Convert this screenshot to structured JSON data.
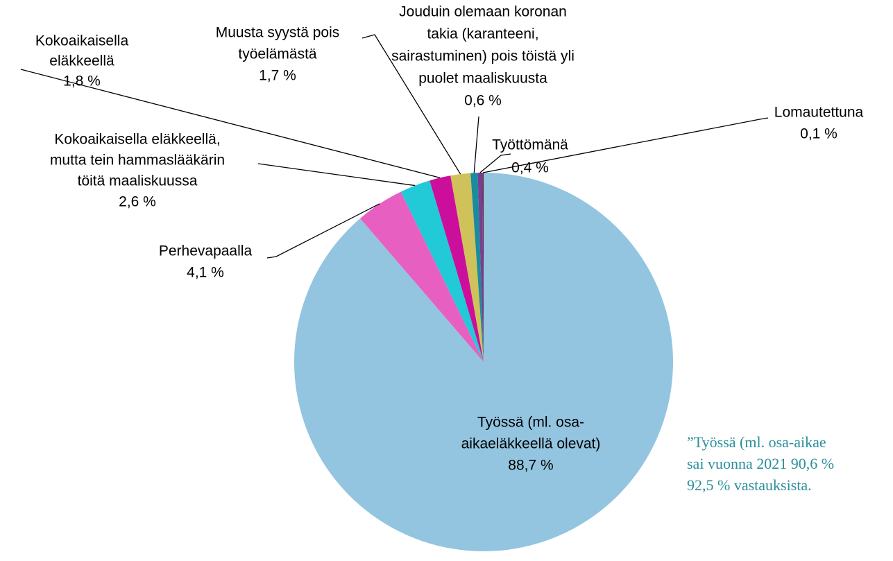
{
  "chart_data": {
    "type": "pie",
    "categories": [
      [
        "Työssä (ml. osa-",
        "aikaeläkkeellä olevat)"
      ],
      [
        "Perhevapaalla"
      ],
      [
        "Kokoaikaisella eläkkeellä,",
        "mutta tein hammaslääkärin",
        "töitä maaliskuussa"
      ],
      [
        "Kokoaikaisella",
        "eläkkeellä"
      ],
      [
        "Muusta syystä pois",
        "työelämästä"
      ],
      [
        "Jouduin olemaan koronan",
        "takia (karanteeni,",
        "sairastuminen) pois töistä yli",
        "puolet maaliskuusta"
      ],
      [
        "Työttömänä"
      ],
      [
        "Lomautettuna"
      ]
    ],
    "values": [
      88.7,
      4.1,
      2.6,
      1.8,
      1.7,
      0.6,
      0.4,
      0.1
    ],
    "value_labels": [
      "88,7 %",
      "4,1 %",
      "2,6 %",
      "1,8 %",
      "1,7 %",
      "0,6 %",
      "0,4 %",
      "0,1 %"
    ],
    "colors": [
      "#93c5e0",
      "#e85fc2",
      "#22c9d6",
      "#cc0e9c",
      "#cfc25a",
      "#1a8ca0",
      "#7a3d8f",
      "#5b2a3c"
    ],
    "annotation": [
      "”Työssä (ml. osa-aikae",
      "sai vuonna 2021 90,6 %",
      "92,5 % vastauksista."
    ]
  }
}
